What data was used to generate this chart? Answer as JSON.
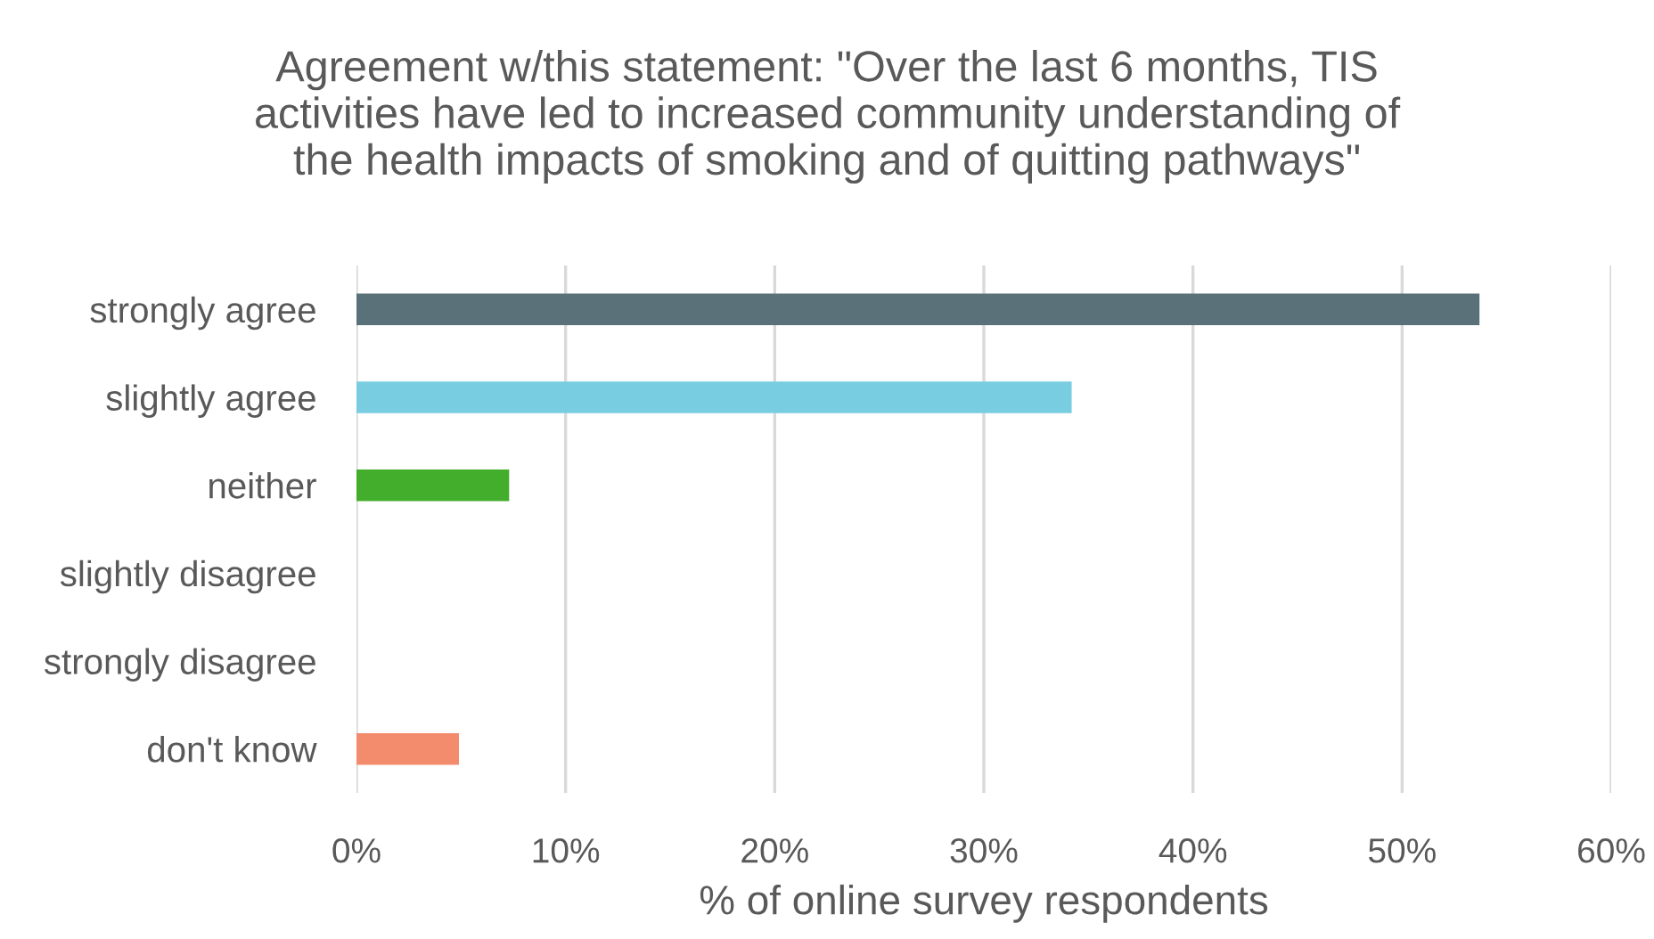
{
  "chart_data": {
    "type": "bar",
    "orientation": "horizontal",
    "title": "Agreement w/this statement: \"Over the last 6 months, TIS\nactivities have led to increased community understanding of\nthe health impacts of smoking and of quitting pathways\"",
    "xlabel": "% of online survey respondents",
    "categories": [
      "strongly agree",
      "slightly agree",
      "neither",
      "slightly disagree",
      "strongly disagree",
      "don't know"
    ],
    "values": [
      53.7,
      34.2,
      7.3,
      0,
      0,
      4.9
    ],
    "colors": [
      "#5a717a",
      "#78cde1",
      "#43ad2c",
      null,
      null,
      "#f38c6c"
    ],
    "xlim": [
      0,
      60
    ],
    "xticks": [
      {
        "value": 0,
        "label": "0%"
      },
      {
        "value": 10,
        "label": "10%"
      },
      {
        "value": 20,
        "label": "20%"
      },
      {
        "value": 30,
        "label": "30%"
      },
      {
        "value": 40,
        "label": "40%"
      },
      {
        "value": 50,
        "label": "50%"
      },
      {
        "value": 60,
        "label": "60%"
      }
    ],
    "grid": "x"
  }
}
